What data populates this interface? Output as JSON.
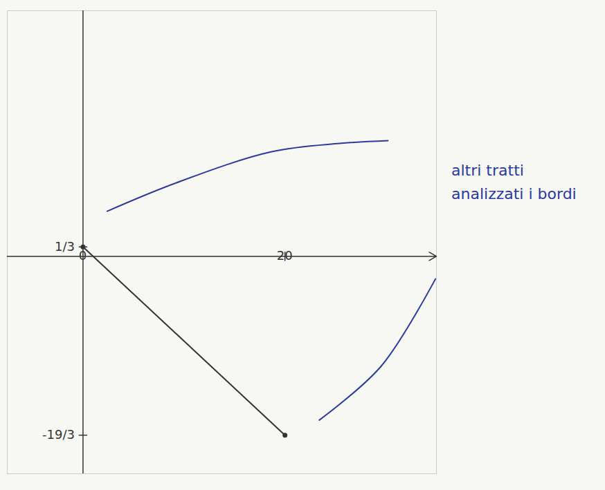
{
  "chart_data": {
    "type": "line",
    "xlim": [
      -7.5,
      35
    ],
    "ylim": [
      -7.7,
      8.7
    ],
    "xticks": [
      0,
      20
    ],
    "yticks": [
      {
        "value": 0.3333,
        "label": "1/3"
      },
      {
        "value": -6.3333,
        "label": "-19/3"
      }
    ],
    "grid": false,
    "annotations": [
      "altri tratti analizzati i bordi"
    ],
    "series": [
      {
        "color": "#333333",
        "marker": "dot",
        "x": [
          0,
          20
        ],
        "values": [
          0.3333,
          -6.3333
        ]
      },
      {
        "color": "#2b3aa0",
        "x": [
          2.4,
          9.2,
          18.6,
          25.4,
          30.2
        ],
        "values": [
          1.6,
          2.6,
          3.7,
          4.0,
          4.1
        ]
      },
      {
        "color": "#2b3aa0",
        "x": [
          23.4,
          29.5,
          34.9
        ],
        "values": [
          -5.8,
          -3.9,
          -0.8
        ]
      }
    ]
  }
}
